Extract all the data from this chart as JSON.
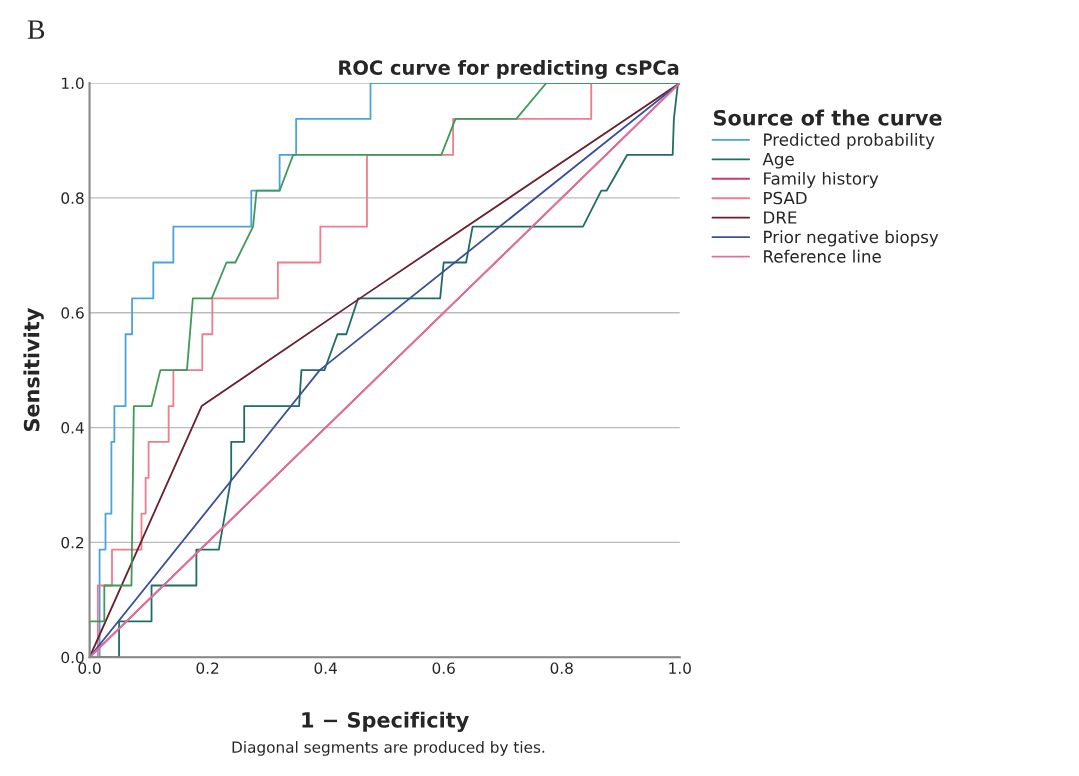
{
  "chart_data": {
    "type": "line",
    "title": "ROC curve for predicting csPCa",
    "xlabel": "1 − Specificity",
    "ylabel": "Sensitivity",
    "legend_title": "Source of the curve",
    "annotations": [
      "B",
      "Diagonal segments are produced by ties."
    ],
    "xlim": [
      0,
      1
    ],
    "ylim": [
      0,
      1
    ],
    "xticks": [
      {
        "value": 0,
        "label": "0.0"
      },
      {
        "value": 0.2,
        "label": "0.2"
      },
      {
        "value": 0.4,
        "label": "0.4"
      },
      {
        "value": 0.6,
        "label": "0.6"
      },
      {
        "value": 0.8,
        "label": "0.8"
      },
      {
        "value": 1,
        "label": "1.0"
      }
    ],
    "yticks": [
      {
        "value": 0,
        "label": "0.0"
      },
      {
        "value": 0.2,
        "label": "0.2"
      },
      {
        "value": 0.4,
        "label": "0.4"
      },
      {
        "value": 0.6,
        "label": "0.6"
      },
      {
        "value": 0.8,
        "label": "0.8"
      },
      {
        "value": 1,
        "label": "1.0"
      }
    ],
    "grid": "y",
    "legend": "right",
    "marker": "none",
    "line_style": "solid",
    "series": [
      {
        "name": "Predicted probability",
        "color": "#4aa3df",
        "x": [
          0,
          0.017,
          0.017,
          0.027,
          0.027,
          0.037,
          0.037,
          0.042,
          0.042,
          0.061,
          0.061,
          0.072,
          0.072,
          0.108,
          0.108,
          0.142,
          0.142,
          0.274,
          0.274,
          0.322,
          0.322,
          0.35,
          0.35,
          0.476,
          0.476,
          1
        ],
        "values": [
          0,
          0,
          0.1875,
          0.1875,
          0.25,
          0.25,
          0.375,
          0.375,
          0.4375,
          0.4375,
          0.5625,
          0.5625,
          0.625,
          0.625,
          0.6875,
          0.6875,
          0.75,
          0.75,
          0.8125,
          0.8125,
          0.875,
          0.875,
          0.9375,
          0.9375,
          1,
          1
        ]
      },
      {
        "name": "Age",
        "color": "#1f6e63",
        "x": [
          0,
          0.05,
          0.05,
          0.105,
          0.105,
          0.181,
          0.181,
          0.219,
          0.24,
          0.24,
          0.262,
          0.262,
          0.355,
          0.359,
          0.398,
          0.42,
          0.435,
          0.455,
          0.594,
          0.6,
          0.638,
          0.649,
          0.836,
          0.867,
          0.876,
          0.911,
          0.988,
          0.99,
          0.997,
          1
        ],
        "values": [
          0,
          0,
          0.0625,
          0.0625,
          0.125,
          0.125,
          0.1875,
          0.1875,
          0.3125,
          0.375,
          0.375,
          0.4375,
          0.4375,
          0.5,
          0.5,
          0.5625,
          0.5625,
          0.625,
          0.625,
          0.6875,
          0.6875,
          0.75,
          0.75,
          0.8125,
          0.8125,
          0.875,
          0.875,
          0.9375,
          1,
          1
        ]
      },
      {
        "name": "Family history",
        "color": "#d6336c",
        "x": [
          0,
          1
        ],
        "values": [
          0,
          1
        ]
      },
      {
        "name": "PSAD",
        "color": "#f07b8a",
        "x": [
          0,
          0.014,
          0.014,
          0.038,
          0.038,
          0.088,
          0.088,
          0.095,
          0.095,
          0.1,
          0.1,
          0.134,
          0.134,
          0.142,
          0.142,
          0.191,
          0.191,
          0.208,
          0.208,
          0.319,
          0.319,
          0.391,
          0.391,
          0.47,
          0.47,
          0.616,
          0.616,
          0.85,
          0.85,
          1
        ],
        "values": [
          0,
          0,
          0.125,
          0.125,
          0.1875,
          0.1875,
          0.25,
          0.25,
          0.3125,
          0.3125,
          0.375,
          0.375,
          0.4375,
          0.4375,
          0.5,
          0.5,
          0.5625,
          0.5625,
          0.625,
          0.625,
          0.6875,
          0.6875,
          0.75,
          0.75,
          0.875,
          0.875,
          0.9375,
          0.9375,
          1,
          1
        ]
      },
      {
        "name": "DRE",
        "color": "#6b1f2e",
        "x": [
          0,
          0.19,
          0.458,
          1
        ],
        "values": [
          0,
          0.4375,
          0.625,
          1
        ]
      },
      {
        "color": "#3f9a5a",
        "x": [
          0,
          0,
          0.025,
          0.025,
          0.071,
          0.075,
          0.105,
          0.12,
          0.165,
          0.175,
          0.207,
          0.232,
          0.247,
          0.277,
          0.283,
          0.322,
          0.345,
          0.596,
          0.62,
          0.723,
          0.774,
          1
        ],
        "values": [
          0,
          0.0625,
          0.0625,
          0.125,
          0.125,
          0.4375,
          0.4375,
          0.5,
          0.5,
          0.625,
          0.625,
          0.6875,
          0.6875,
          0.75,
          0.8125,
          0.8125,
          0.875,
          0.875,
          0.9375,
          0.9375,
          1,
          1
        ]
      },
      {
        "name": "Prior negative biopsy",
        "color": "#3a4fa0",
        "x": [
          0,
          0.39,
          1
        ],
        "values": [
          0,
          0.5,
          1
        ]
      },
      {
        "name": "Reference line",
        "color": "#e0709a",
        "x": [
          0,
          1
        ],
        "values": [
          0,
          1
        ]
      }
    ]
  }
}
